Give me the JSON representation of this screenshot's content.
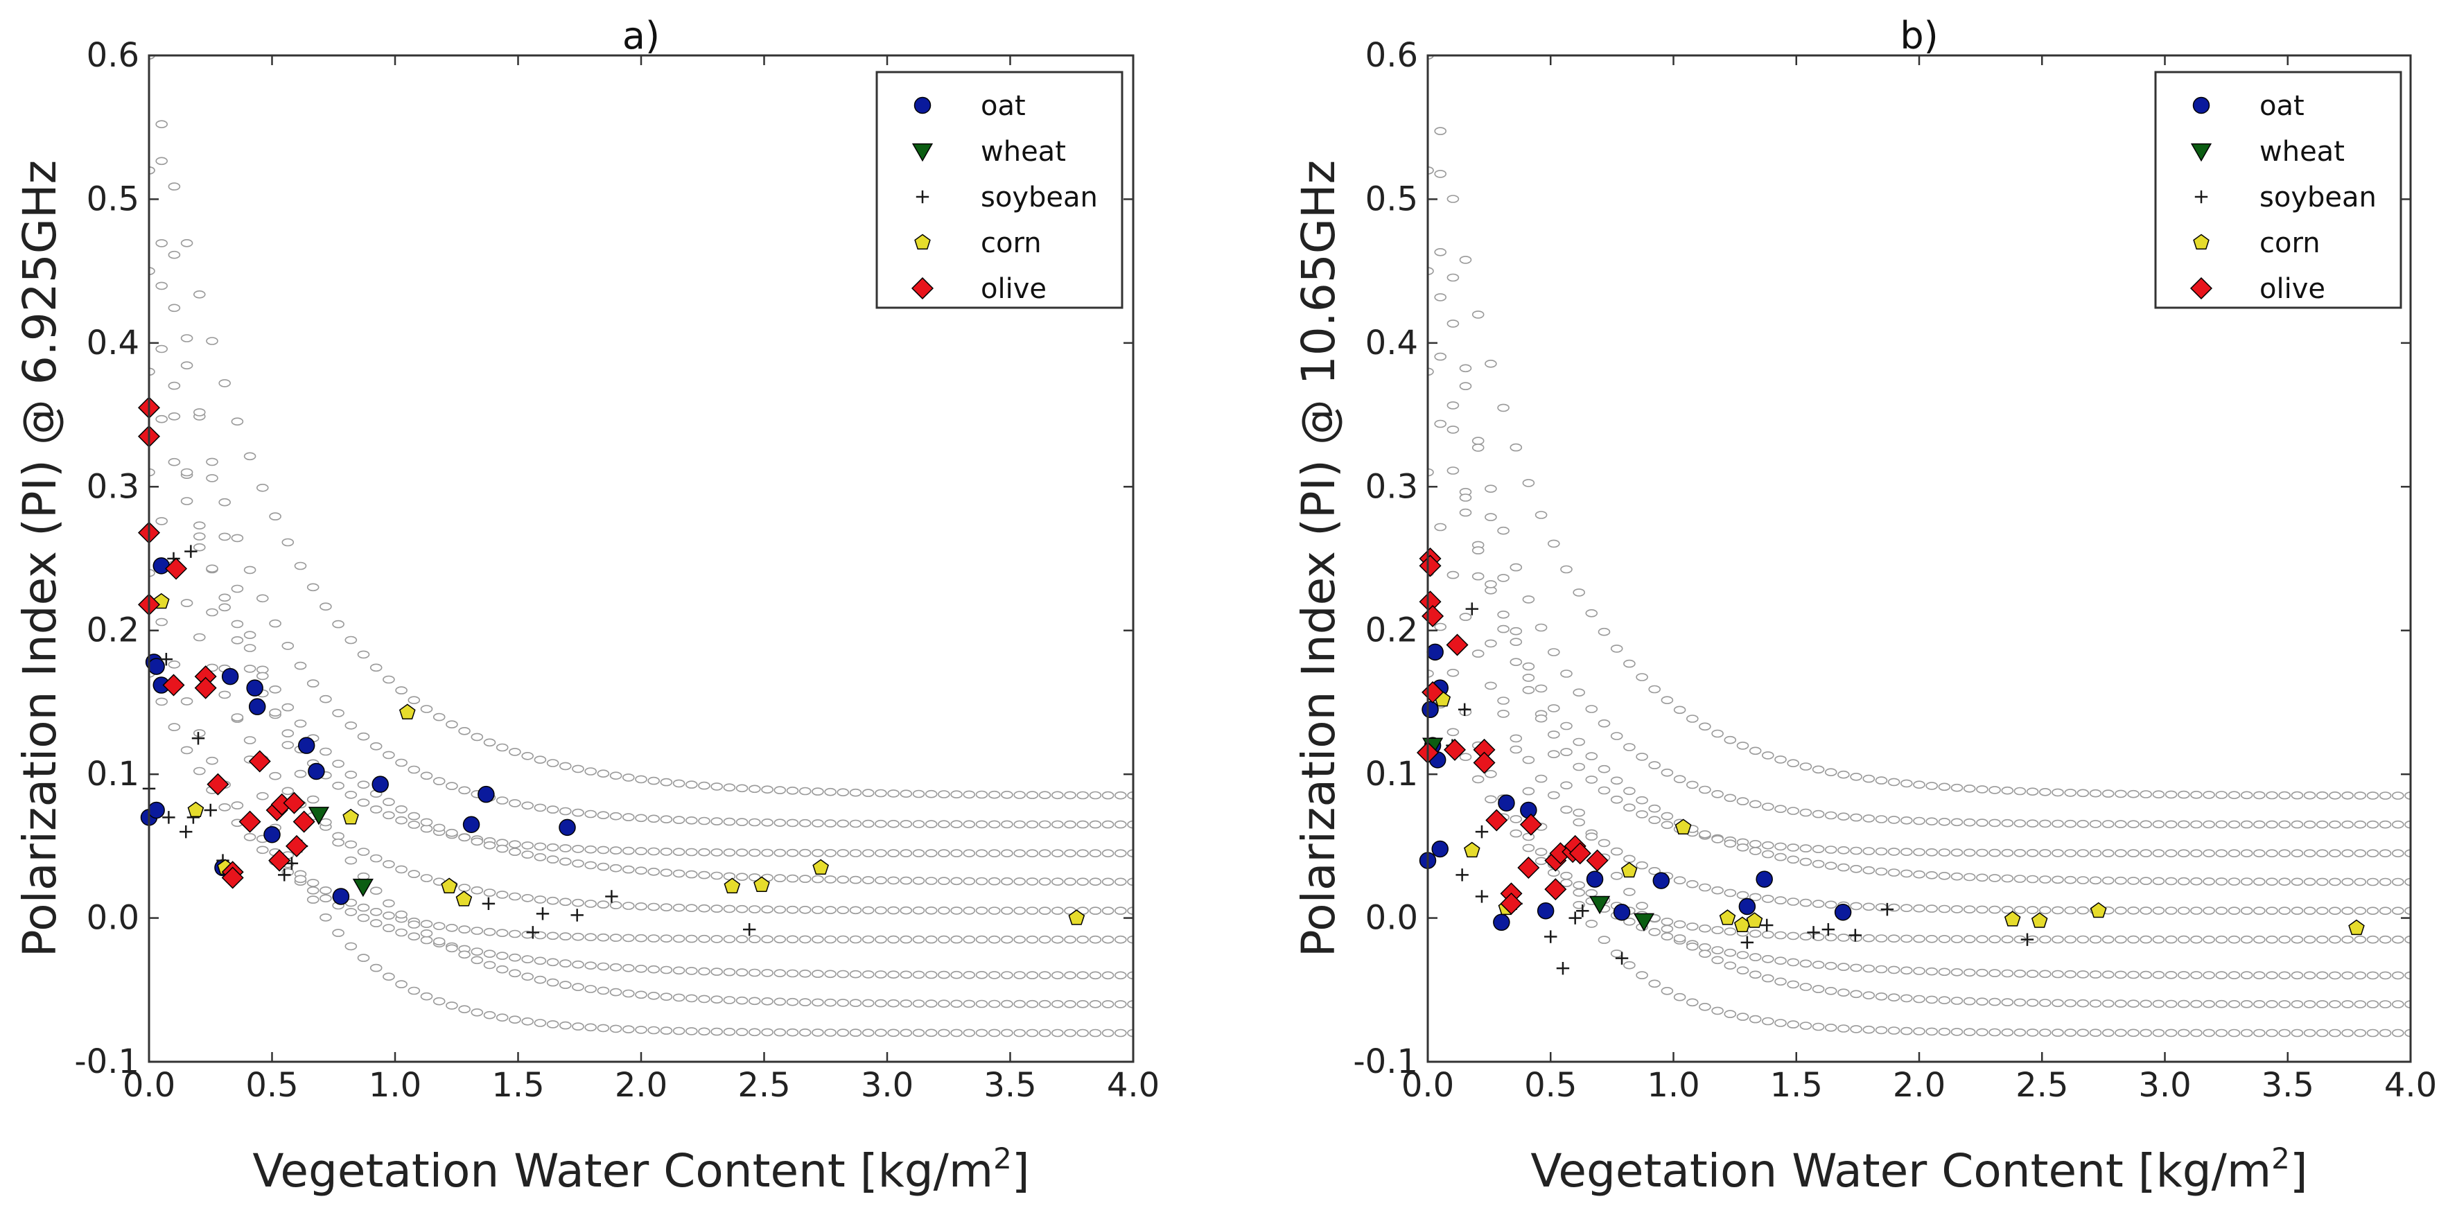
{
  "colors": {
    "oat": "#0a1a9c",
    "wheat": "#0b5d12",
    "soybean": "#1a1a1a",
    "corn": "#e6dc2c",
    "olive": "#e8141c",
    "model": "#9a9a9a"
  },
  "chart_data": [
    {
      "type": "scatter",
      "title": "a)",
      "xlabel": "Vegetation Water Content [kg/m",
      "xlabel_sup": "2",
      "xlabel_end": "]",
      "ylabel": "Polarization Index (PI) @ 6.925GHz",
      "xlim": [
        0.0,
        4.0
      ],
      "ylim": [
        -0.1,
        0.6
      ],
      "xticks": [
        "0.0",
        "0.5",
        "1.0",
        "1.5",
        "2.0",
        "2.5",
        "3.0",
        "3.5",
        "4.0"
      ],
      "yticks": [
        "-0.1",
        "0.0",
        "0.1",
        "0.2",
        "0.3",
        "0.4",
        "0.5",
        "0.6"
      ],
      "legend_position": "top-right",
      "model_curves": {
        "description": "background model simulation curves (gray circles)",
        "p0": [
          0.6,
          0.52,
          0.45,
          0.38,
          0.31,
          0.24,
          0.17
        ],
        "asymptotes": [
          0.085,
          0.065,
          0.045,
          0.025,
          0.005,
          -0.015,
          -0.04,
          -0.06,
          -0.08
        ],
        "decay": [
          1.9,
          2.3,
          2.8
        ]
      },
      "series": [
        {
          "name": "oat",
          "marker": "circle",
          "x": [
            0.0,
            0.02,
            0.03,
            0.05,
            0.33,
            0.43,
            0.44,
            0.5,
            0.64,
            0.68,
            0.78,
            0.94,
            1.31,
            1.37,
            1.7,
            0.3,
            0.05,
            0.03
          ],
          "y": [
            0.07,
            0.178,
            0.175,
            0.162,
            0.168,
            0.16,
            0.147,
            0.058,
            0.12,
            0.102,
            0.015,
            0.093,
            0.065,
            0.086,
            0.063,
            0.035,
            0.245,
            0.075
          ]
        },
        {
          "name": "wheat",
          "marker": "triangle-down",
          "x": [
            0.69,
            0.87
          ],
          "y": [
            0.072,
            0.022
          ]
        },
        {
          "name": "soybean",
          "marker": "plus",
          "x": [
            0.0,
            0.07,
            0.15,
            0.17,
            0.2,
            0.25,
            0.3,
            0.35,
            0.55,
            0.58,
            0.62,
            1.38,
            1.56,
            1.6,
            1.74,
            1.88,
            2.44,
            0.18,
            0.1,
            0.08
          ],
          "y": [
            0.09,
            0.18,
            0.06,
            0.255,
            0.125,
            0.075,
            0.04,
            0.032,
            0.03,
            0.038,
            0.05,
            0.01,
            -0.01,
            0.003,
            0.002,
            0.015,
            -0.008,
            0.07,
            0.25,
            0.07
          ]
        },
        {
          "name": "corn",
          "marker": "pentagon",
          "x": [
            0.05,
            0.19,
            0.31,
            0.82,
            1.05,
            1.22,
            1.28,
            2.37,
            2.49,
            2.73,
            3.77
          ],
          "y": [
            0.22,
            0.075,
            0.035,
            0.07,
            0.143,
            0.022,
            0.013,
            0.022,
            0.023,
            0.035,
            0.0
          ]
        },
        {
          "name": "olive",
          "marker": "diamond",
          "x": [
            0.0,
            0.0,
            0.0,
            0.0,
            0.11,
            0.1,
            0.23,
            0.23,
            0.28,
            0.34,
            0.34,
            0.41,
            0.45,
            0.52,
            0.54,
            0.59,
            0.6,
            0.63,
            0.53
          ],
          "y": [
            0.355,
            0.335,
            0.268,
            0.218,
            0.243,
            0.162,
            0.168,
            0.16,
            0.093,
            0.032,
            0.028,
            0.067,
            0.109,
            0.075,
            0.079,
            0.08,
            0.05,
            0.067,
            0.04
          ]
        }
      ]
    },
    {
      "type": "scatter",
      "title": "b)",
      "xlabel": "Vegetation Water Content [kg/m",
      "xlabel_sup": "2",
      "xlabel_end": "]",
      "ylabel": "Polarization Index (PI) @ 10.65GHz",
      "xlim": [
        0.0,
        4.0
      ],
      "ylim": [
        -0.1,
        0.6
      ],
      "xticks": [
        "0.0",
        "0.5",
        "1.0",
        "1.5",
        "2.0",
        "2.5",
        "3.0",
        "3.5",
        "4.0"
      ],
      "yticks": [
        "-0.1",
        "0.0",
        "0.1",
        "0.2",
        "0.3",
        "0.4",
        "0.5",
        "0.6"
      ],
      "legend_position": "top-right",
      "model_curves": {
        "description": "background model simulation curves (gray circles)",
        "p0": [
          0.6,
          0.52,
          0.45,
          0.38,
          0.31,
          0.24,
          0.17
        ],
        "asymptotes": [
          0.085,
          0.065,
          0.045,
          0.025,
          0.005,
          -0.015,
          -0.04,
          -0.06,
          -0.08
        ],
        "decay": [
          2.1,
          2.6,
          3.1
        ]
      },
      "series": [
        {
          "name": "oat",
          "marker": "circle",
          "x": [
            0.0,
            0.01,
            0.03,
            0.04,
            0.05,
            0.32,
            0.41,
            0.48,
            0.68,
            0.79,
            0.95,
            1.3,
            1.37,
            1.69,
            0.3,
            0.05,
            0.02
          ],
          "y": [
            0.04,
            0.145,
            0.185,
            0.11,
            0.16,
            0.08,
            0.075,
            0.005,
            0.027,
            0.004,
            0.026,
            0.008,
            0.027,
            0.004,
            -0.003,
            0.048,
            0.12
          ]
        },
        {
          "name": "wheat",
          "marker": "triangle-down",
          "x": [
            0.02,
            0.7,
            0.88
          ],
          "y": [
            0.12,
            0.01,
            -0.002
          ]
        },
        {
          "name": "soybean",
          "marker": "plus",
          "x": [
            0.15,
            0.18,
            0.22,
            0.22,
            0.36,
            0.5,
            0.55,
            0.6,
            0.63,
            0.79,
            1.28,
            1.3,
            1.38,
            1.57,
            1.63,
            1.74,
            1.87,
            2.44,
            0.14,
            0.1
          ],
          "y": [
            0.145,
            0.215,
            0.06,
            0.015,
            0.01,
            -0.013,
            -0.035,
            0.0,
            0.005,
            -0.028,
            -0.005,
            -0.017,
            -0.005,
            -0.01,
            -0.008,
            -0.012,
            0.006,
            -0.015,
            0.03,
            0.12
          ]
        },
        {
          "name": "corn",
          "marker": "pentagon",
          "x": [
            0.06,
            0.18,
            0.32,
            0.82,
            1.04,
            1.22,
            1.28,
            1.33,
            2.38,
            2.49,
            2.73,
            3.78
          ],
          "y": [
            0.152,
            0.047,
            0.007,
            0.033,
            0.063,
            0.0,
            -0.005,
            -0.002,
            -0.001,
            -0.002,
            0.005,
            -0.007
          ]
        },
        {
          "name": "olive",
          "marker": "diamond",
          "x": [
            0.01,
            0.01,
            0.01,
            0.02,
            0.02,
            0.0,
            0.12,
            0.11,
            0.23,
            0.23,
            0.28,
            0.34,
            0.34,
            0.41,
            0.42,
            0.52,
            0.54,
            0.59,
            0.6,
            0.62,
            0.69,
            0.52
          ],
          "y": [
            0.25,
            0.245,
            0.22,
            0.21,
            0.157,
            0.115,
            0.19,
            0.117,
            0.117,
            0.108,
            0.068,
            0.017,
            0.01,
            0.035,
            0.065,
            0.04,
            0.045,
            0.046,
            0.05,
            0.045,
            0.04,
            0.02
          ]
        }
      ]
    }
  ]
}
